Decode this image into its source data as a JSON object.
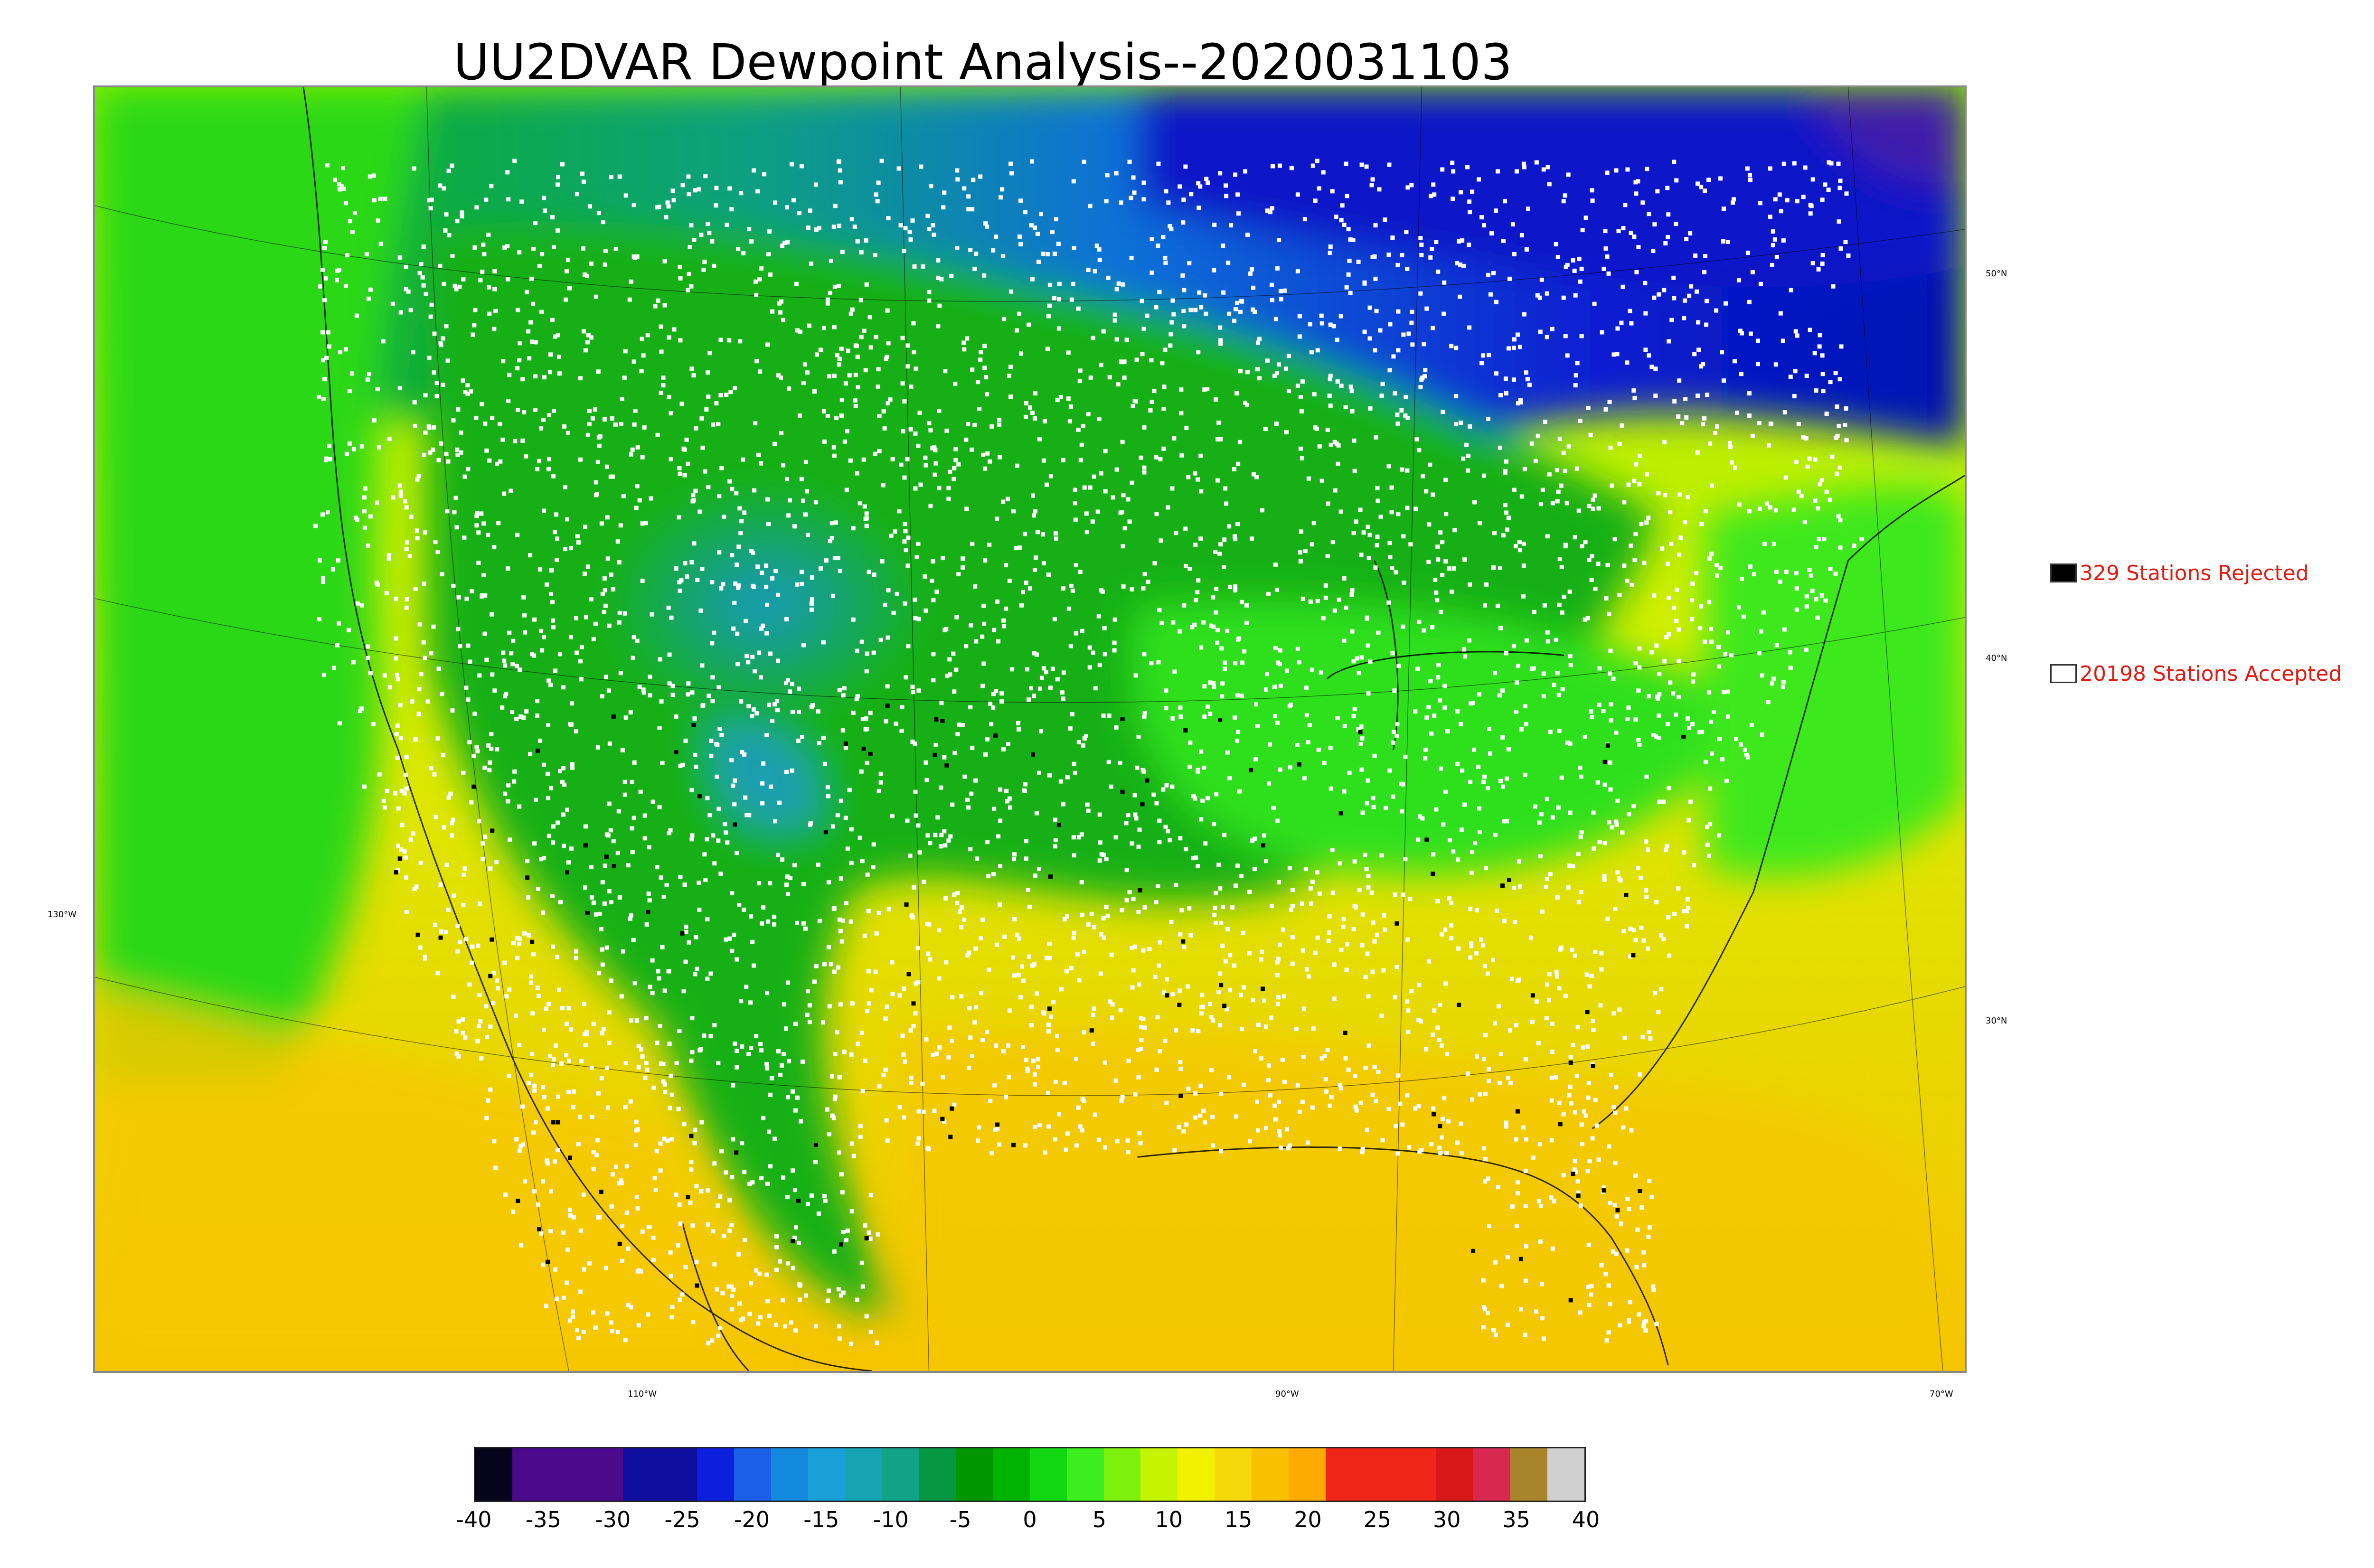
{
  "title": "UU2DVAR Dewpoint Analysis--2020031103",
  "map": {
    "lat_labels": [
      "50°N",
      "40°N",
      "30°N"
    ],
    "lon_labels": [
      "130°W",
      "110°W",
      "90°W",
      "70°W"
    ],
    "fill_colors": {
      "ocean_warm": "#f5cf00",
      "ocean_green": "#45e800",
      "land_green": "#00b000",
      "north_blue": "#0017c8",
      "mountain_teal": "#139ea8",
      "south_yellow": "#e3ef00"
    }
  },
  "legend": {
    "rejected": {
      "label": "329 Stations Rejected",
      "color": "#000000"
    },
    "accepted": {
      "label": "20198 Stations Accepted",
      "color": "#ffffff"
    }
  },
  "colorbar": {
    "ticks": [
      "-40",
      "-35",
      "-30",
      "-25",
      "-20",
      "-15",
      "-10",
      "-5",
      "0",
      "5",
      "10",
      "15",
      "20",
      "25",
      "30",
      "35",
      "40"
    ],
    "range": [
      -40,
      40
    ],
    "colors": [
      "#06041a",
      "#4b0a8c",
      "#4b0a8c",
      "#4b0a8c",
      "#0d0d9e",
      "#0d0d9e",
      "#0c1fdc",
      "#1a5fe6",
      "#1389dd",
      "#1aa0d8",
      "#17a4b2",
      "#12a288",
      "#079742",
      "#009600",
      "#00b300",
      "#11d812",
      "#3cee20",
      "#7df10c",
      "#c5f400",
      "#f2f200",
      "#f6d90a",
      "#f9c000",
      "#ffaa00",
      "#ef2518",
      "#ef2518",
      "#ef2518",
      "#d81818",
      "#d82850",
      "#a8842a",
      "#cfcfcf"
    ]
  }
}
